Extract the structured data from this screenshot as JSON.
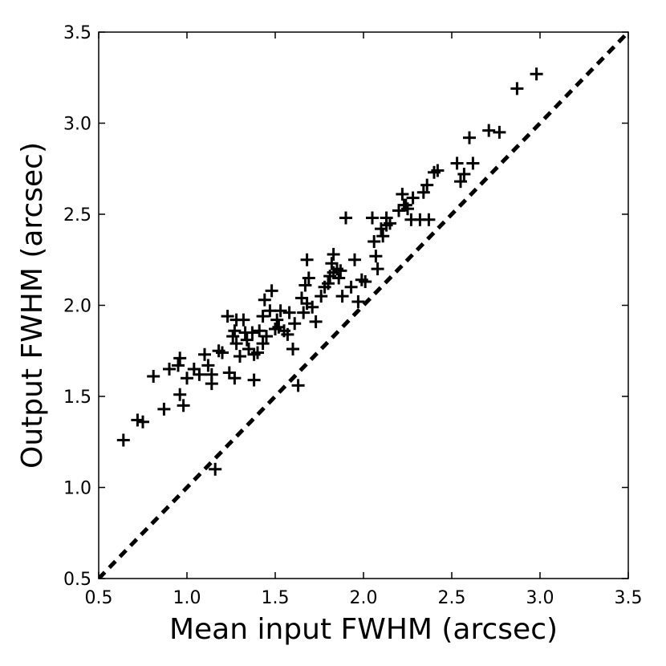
{
  "chart_data": {
    "type": "scatter",
    "title": "",
    "xlabel": "Mean input FWHM (arcsec)",
    "ylabel": "Output FWHM (arcsec)",
    "xlim": [
      0.5,
      3.5
    ],
    "ylim": [
      0.5,
      3.5
    ],
    "xticks": [
      0.5,
      1.0,
      1.5,
      2.0,
      2.5,
      3.0,
      3.5
    ],
    "yticks": [
      0.5,
      1.0,
      1.5,
      2.0,
      2.5,
      3.0,
      3.5
    ],
    "xtick_labels": [
      "0.5",
      "1.0",
      "1.5",
      "2.0",
      "2.5",
      "3.0",
      "3.5"
    ],
    "ytick_labels": [
      "0.5",
      "1.0",
      "1.5",
      "2.0",
      "2.5",
      "3.0",
      "3.5"
    ],
    "grid": false,
    "marker": "+",
    "marker_color": "#000000",
    "reference_line": {
      "style": "dashed",
      "color": "#000000",
      "from": [
        0.5,
        0.5
      ],
      "to": [
        3.5,
        3.5
      ]
    },
    "points": [
      [
        0.64,
        1.26
      ],
      [
        0.72,
        1.37
      ],
      [
        0.75,
        1.36
      ],
      [
        0.81,
        1.61
      ],
      [
        0.87,
        1.43
      ],
      [
        0.9,
        1.65
      ],
      [
        0.95,
        1.67
      ],
      [
        0.96,
        1.71
      ],
      [
        0.96,
        1.51
      ],
      [
        0.98,
        1.45
      ],
      [
        1.0,
        1.6
      ],
      [
        1.04,
        1.65
      ],
      [
        1.07,
        1.62
      ],
      [
        1.1,
        1.73
      ],
      [
        1.12,
        1.67
      ],
      [
        1.14,
        1.57
      ],
      [
        1.14,
        1.62
      ],
      [
        1.16,
        1.1
      ],
      [
        1.18,
        1.75
      ],
      [
        1.2,
        1.74
      ],
      [
        1.23,
        1.94
      ],
      [
        1.24,
        1.63
      ],
      [
        1.26,
        1.83
      ],
      [
        1.27,
        1.6
      ],
      [
        1.27,
        1.86
      ],
      [
        1.28,
        1.79
      ],
      [
        1.28,
        1.92
      ],
      [
        1.3,
        1.72
      ],
      [
        1.32,
        1.92
      ],
      [
        1.33,
        1.85
      ],
      [
        1.34,
        1.81
      ],
      [
        1.35,
        1.76
      ],
      [
        1.37,
        1.85
      ],
      [
        1.38,
        1.59
      ],
      [
        1.38,
        1.73
      ],
      [
        1.4,
        1.74
      ],
      [
        1.41,
        1.86
      ],
      [
        1.43,
        1.79
      ],
      [
        1.43,
        1.94
      ],
      [
        1.44,
        2.03
      ],
      [
        1.45,
        1.83
      ],
      [
        1.47,
        1.97
      ],
      [
        1.48,
        2.08
      ],
      [
        1.5,
        1.87
      ],
      [
        1.51,
        1.92
      ],
      [
        1.52,
        1.88
      ],
      [
        1.53,
        1.97
      ],
      [
        1.55,
        1.86
      ],
      [
        1.57,
        1.84
      ],
      [
        1.58,
        1.96
      ],
      [
        1.6,
        1.76
      ],
      [
        1.61,
        1.9
      ],
      [
        1.63,
        1.56
      ],
      [
        1.65,
        2.04
      ],
      [
        1.66,
        1.96
      ],
      [
        1.67,
        2.11
      ],
      [
        1.68,
        2.25
      ],
      [
        1.68,
        2.01
      ],
      [
        1.69,
        2.15
      ],
      [
        1.71,
        1.99
      ],
      [
        1.73,
        1.91
      ],
      [
        1.76,
        2.05
      ],
      [
        1.78,
        2.1
      ],
      [
        1.8,
        2.12
      ],
      [
        1.81,
        2.16
      ],
      [
        1.82,
        2.23
      ],
      [
        1.83,
        2.18
      ],
      [
        1.83,
        2.28
      ],
      [
        1.85,
        2.2
      ],
      [
        1.86,
        2.15
      ],
      [
        1.87,
        2.19
      ],
      [
        1.88,
        2.05
      ],
      [
        1.9,
        2.48
      ],
      [
        1.93,
        2.1
      ],
      [
        1.95,
        2.25
      ],
      [
        1.97,
        2.02
      ],
      [
        1.99,
        2.14
      ],
      [
        2.01,
        2.13
      ],
      [
        2.05,
        2.48
      ],
      [
        2.06,
        2.35
      ],
      [
        2.07,
        2.27
      ],
      [
        2.08,
        2.2
      ],
      [
        2.1,
        2.42
      ],
      [
        2.11,
        2.38
      ],
      [
        2.13,
        2.44
      ],
      [
        2.13,
        2.48
      ],
      [
        2.15,
        2.45
      ],
      [
        2.2,
        2.52
      ],
      [
        2.22,
        2.61
      ],
      [
        2.23,
        2.55
      ],
      [
        2.24,
        2.55
      ],
      [
        2.25,
        2.53
      ],
      [
        2.27,
        2.47
      ],
      [
        2.28,
        2.59
      ],
      [
        2.32,
        2.47
      ],
      [
        2.34,
        2.62
      ],
      [
        2.36,
        2.66
      ],
      [
        2.37,
        2.47
      ],
      [
        2.4,
        2.73
      ],
      [
        2.42,
        2.74
      ],
      [
        2.53,
        2.78
      ],
      [
        2.55,
        2.68
      ],
      [
        2.57,
        2.72
      ],
      [
        2.6,
        2.92
      ],
      [
        2.62,
        2.78
      ],
      [
        2.71,
        2.96
      ],
      [
        2.77,
        2.95
      ],
      [
        2.87,
        3.19
      ],
      [
        2.98,
        3.27
      ]
    ]
  }
}
